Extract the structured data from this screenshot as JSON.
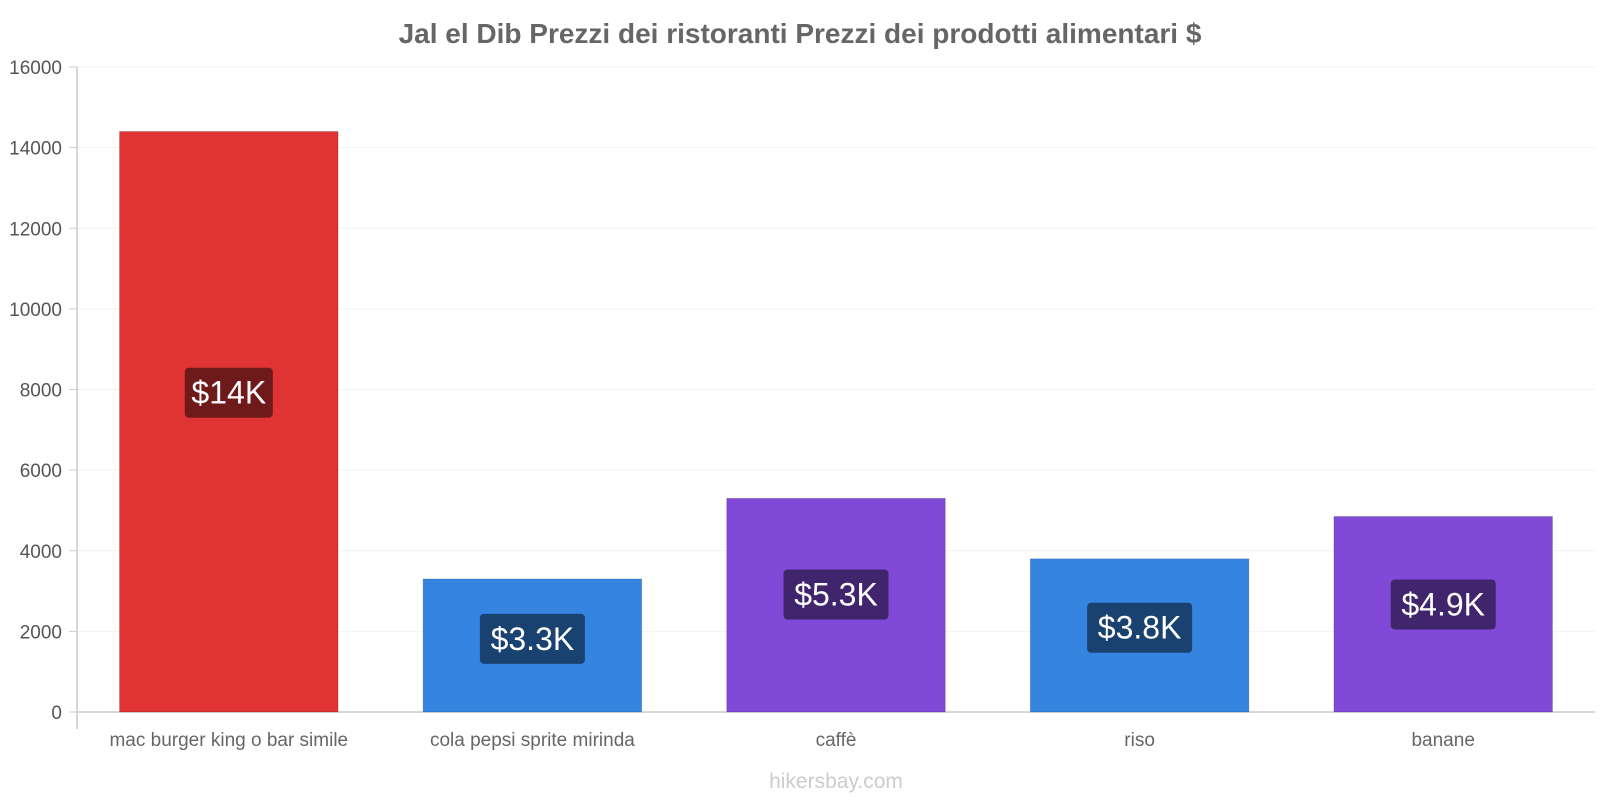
{
  "chart_data": {
    "type": "bar",
    "title": "Jal el Dib Prezzi dei ristoranti Prezzi dei prodotti alimentari $",
    "categories": [
      "mac burger king o bar simile",
      "cola pepsi sprite mirinda",
      "caffè",
      "riso",
      "banane"
    ],
    "values": [
      14400,
      3300,
      5300,
      3800,
      4850
    ],
    "data_labels": [
      "$14K",
      "$3.3K",
      "$5.3K",
      "$3.8K",
      "$4.9K"
    ],
    "bar_colors": [
      "#e03434",
      "#3584e0",
      "#8049d8",
      "#3584e0",
      "#8049d8"
    ],
    "label_bg_colors": [
      "#6e1a1a",
      "#1a4270",
      "#40246c",
      "#1a4270",
      "#40246c"
    ],
    "ylim": [
      0,
      16000
    ],
    "yticks": [
      0,
      2000,
      4000,
      6000,
      8000,
      10000,
      12000,
      14000,
      16000
    ],
    "xlabel": "",
    "ylabel": "",
    "grid": true,
    "legend": "none"
  },
  "watermark": "hikersbay.com"
}
